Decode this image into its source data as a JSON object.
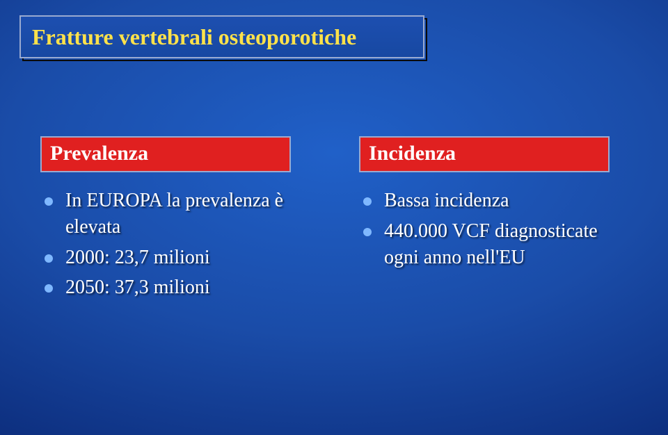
{
  "title": "Fratture vertebrali osteoporotiche",
  "columns": {
    "left": {
      "header": "Prevalenza",
      "items": [
        "In EUROPA la prevalenza è elevata",
        "2000: 23,7 milioni",
        "2050: 37,3 milioni"
      ]
    },
    "right": {
      "header": "Incidenza",
      "items": [
        "Bassa incidenza",
        "440.000 VCF diagnosticate ogni anno nell'EU"
      ]
    }
  },
  "style": {
    "title_color": "#ffe24a",
    "header_bg": "#e02020",
    "text_color": "#ffffff",
    "bullet_color": "#7fb8ff",
    "title_fontsize": 32,
    "header_fontsize": 30,
    "item_fontsize": 28
  }
}
